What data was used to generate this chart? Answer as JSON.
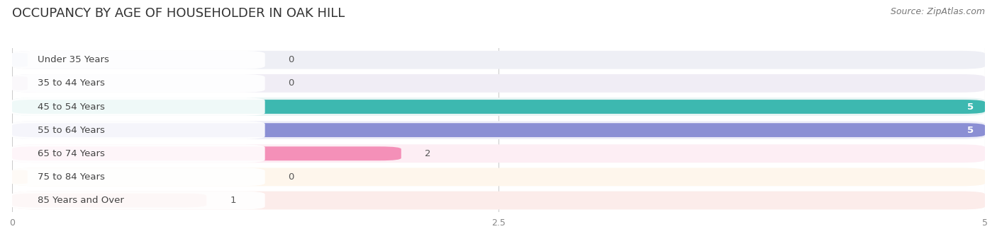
{
  "title": "OCCUPANCY BY AGE OF HOUSEHOLDER IN OAK HILL",
  "source": "Source: ZipAtlas.com",
  "categories": [
    "Under 35 Years",
    "35 to 44 Years",
    "45 to 54 Years",
    "55 to 64 Years",
    "65 to 74 Years",
    "75 to 84 Years",
    "85 Years and Over"
  ],
  "values": [
    0,
    0,
    5,
    5,
    2,
    0,
    1
  ],
  "bar_colors": [
    "#b8cce8",
    "#c8aed0",
    "#3db8b0",
    "#8b8fd4",
    "#f490b8",
    "#f8cc98",
    "#e8a8a0"
  ],
  "bg_colors": [
    "#eeeff5",
    "#f0edf5",
    "#e8f5f4",
    "#eeeef8",
    "#fdeef4",
    "#fef6ec",
    "#fcecea"
  ],
  "white_label_bg": "#ffffff",
  "xlim": [
    0,
    5
  ],
  "xticks": [
    0,
    2.5,
    5
  ],
  "background_color": "#f0f0f5",
  "title_fontsize": 13,
  "source_fontsize": 9,
  "label_fontsize": 9.5,
  "value_fontsize": 9.5
}
